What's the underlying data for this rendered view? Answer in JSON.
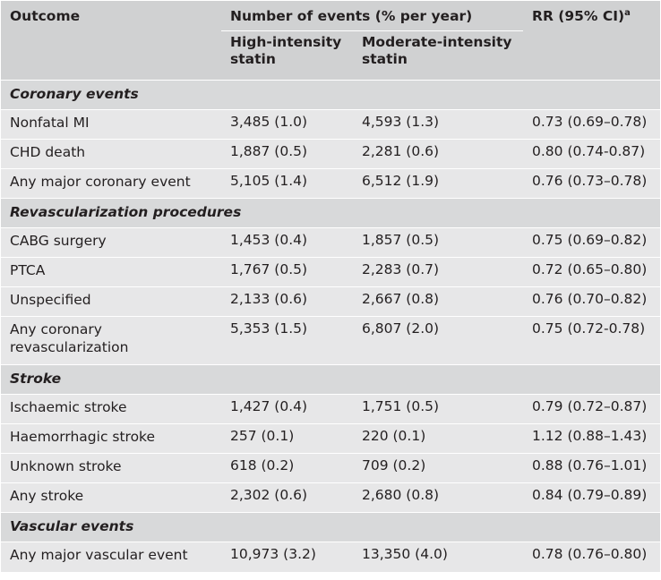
{
  "header": {
    "outcome": "Outcome",
    "events": "Number of events (% per year)",
    "high": "High-intensity statin",
    "moderate": "Moderate-intensity statin",
    "rr": "RR (95% CI)",
    "rr_sup": "a"
  },
  "sections": [
    {
      "title": "Coronary events",
      "rows": [
        {
          "outcome": "Nonfatal MI",
          "high": "3,485 (1.0)",
          "moderate": "4,593 (1.3)",
          "rr": "0.73 (0.69–0.78)"
        },
        {
          "outcome": "CHD death",
          "high": "1,887 (0.5)",
          "moderate": "2,281 (0.6)",
          "rr": "0.80 (0.74-0.87)"
        },
        {
          "outcome": "Any major coronary event",
          "high": "5,105 (1.4)",
          "moderate": "6,512 (1.9)",
          "rr": "0.76 (0.73–0.78)"
        }
      ]
    },
    {
      "title": "Revascularization procedures",
      "rows": [
        {
          "outcome": "CABG surgery",
          "high": "1,453 (0.4)",
          "moderate": "1,857 (0.5)",
          "rr": "0.75 (0.69–0.82)"
        },
        {
          "outcome": "PTCA",
          "high": "1,767 (0.5)",
          "moderate": "2,283 (0.7)",
          "rr": "0.72 (0.65–0.80)"
        },
        {
          "outcome": "Unspecified",
          "high": "2,133 (0.6)",
          "moderate": "2,667 (0.8)",
          "rr": "0.76 (0.70–0.82)"
        },
        {
          "outcome": "Any coronary revascularization",
          "high": "5,353 (1.5)",
          "moderate": "6,807 (2.0)",
          "rr": "0.75 (0.72-0.78)"
        }
      ]
    },
    {
      "title": "Stroke",
      "rows": [
        {
          "outcome": "Ischaemic stroke",
          "high": "1,427 (0.4)",
          "moderate": "1,751 (0.5)",
          "rr": "0.79 (0.72–0.87)"
        },
        {
          "outcome": "Haemorrhagic stroke",
          "high": "257 (0.1)",
          "moderate": "220 (0.1)",
          "rr": "1.12 (0.88–1.43)"
        },
        {
          "outcome": "Unknown stroke",
          "high": "618 (0.2)",
          "moderate": "709 (0.2)",
          "rr": "0.88 (0.76–1.01)"
        },
        {
          "outcome": "Any stroke",
          "high": "2,302 (0.6)",
          "moderate": "2,680 (0.8)",
          "rr": "0.84 (0.79–0.89)"
        }
      ]
    },
    {
      "title": "Vascular events",
      "rows": [
        {
          "outcome": "Any major vascular event",
          "high": "10,973 (3.2)",
          "moderate": "13,350 (4.0)",
          "rr": "0.78 (0.76–0.80)"
        }
      ]
    }
  ]
}
